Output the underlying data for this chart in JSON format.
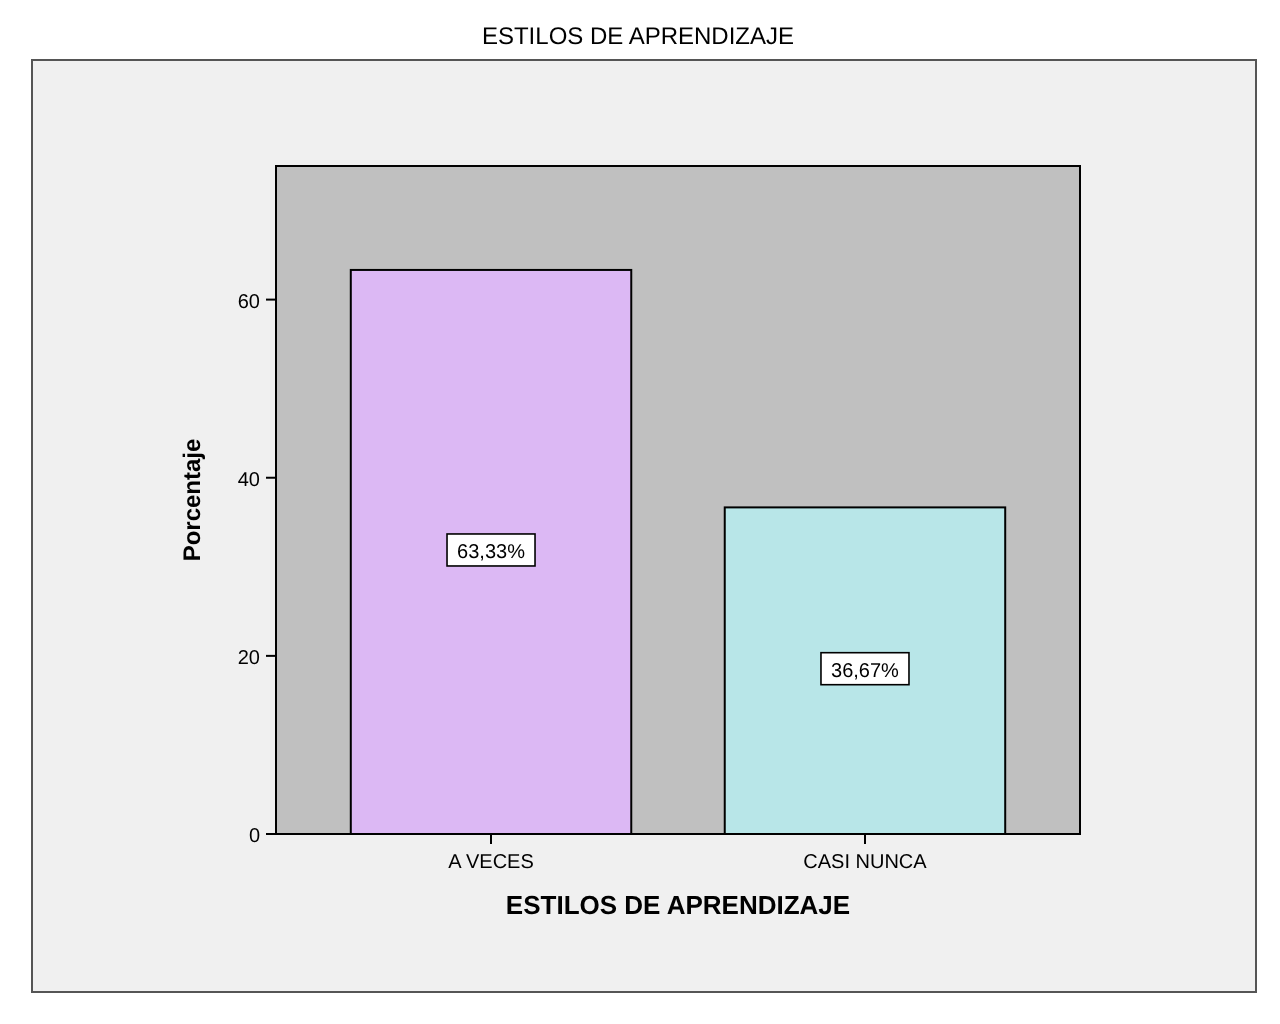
{
  "chart_data": {
    "type": "bar",
    "title": "ESTILOS DE APRENDIZAJE",
    "xlabel": "ESTILOS DE APRENDIZAJE",
    "ylabel": "Porcentaje",
    "categories": [
      "A VECES",
      "CASI NUNCA"
    ],
    "values": [
      63.33,
      36.67
    ],
    "colors": [
      "#dcb8f4",
      "#b8e6e8"
    ],
    "value_labels": [
      "63,33%",
      "36,67%"
    ],
    "ylim": [
      0,
      75
    ],
    "yticks": [
      0,
      20,
      40,
      60
    ]
  }
}
